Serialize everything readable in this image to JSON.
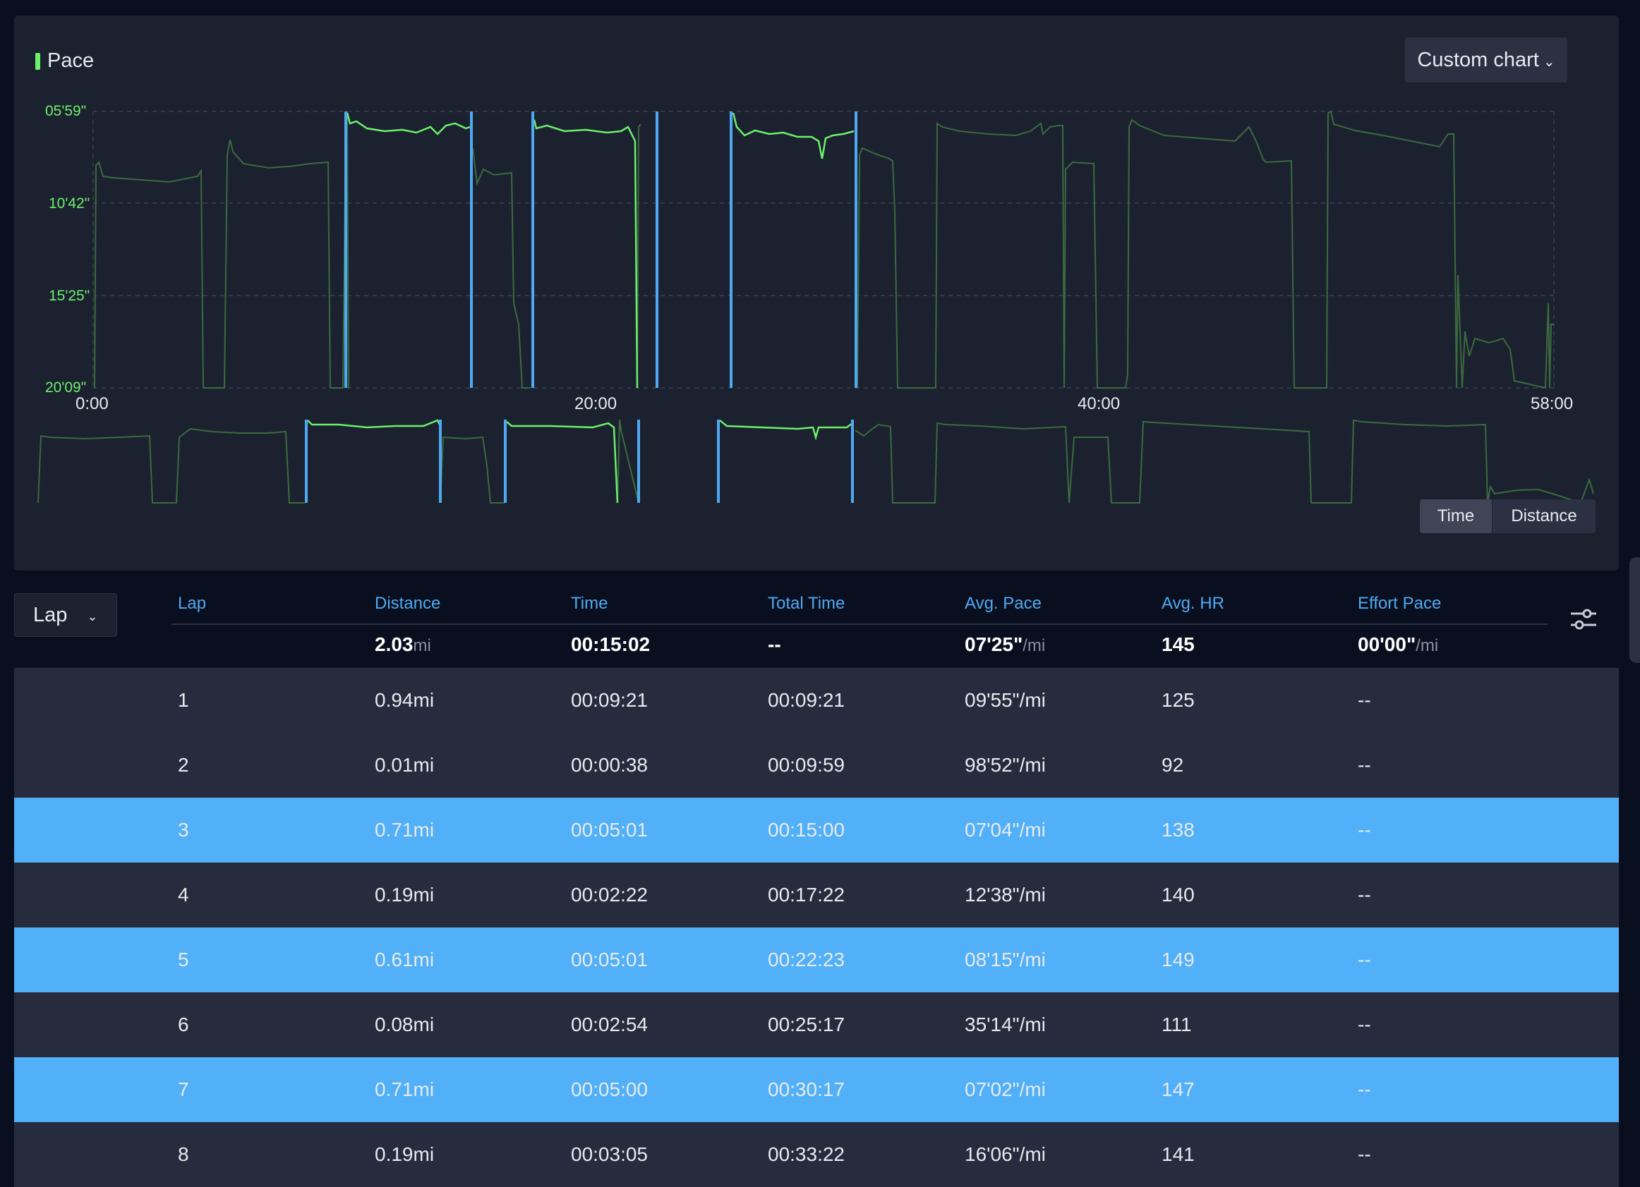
{
  "chart": {
    "title": "Pace",
    "custom_button": "Custom chart",
    "y_ticks": [
      "05'59\"",
      "10'42\"",
      "15'25\"",
      "20'09\""
    ],
    "x_ticks": [
      "0:00",
      "20:00",
      "40:00",
      "58:00"
    ],
    "toggle": {
      "time": "Time",
      "distance": "Distance",
      "active": "time"
    },
    "colors": {
      "line": "#6cf06a",
      "line_dim": "#3a6b3e",
      "lap_marker": "#4fa9f2",
      "grid": "#3a4050"
    }
  },
  "chart_data": {
    "type": "line",
    "x_axis": "time (minutes)",
    "y_axis": "pace (min/mi, inverted)",
    "xlim": [
      0,
      58
    ],
    "ylim": [
      "20'09\"",
      "05'59\""
    ],
    "selected_laps": [
      3,
      5,
      7
    ]
  },
  "table": {
    "lap_select": "Lap",
    "headers": [
      "Lap",
      "Distance",
      "Time",
      "Total Time",
      "Avg. Pace",
      "Avg. HR",
      "Effort Pace"
    ],
    "summary": {
      "distance": "2.03",
      "distance_unit": "mi",
      "time": "00:15:02",
      "total_time": "--",
      "pace": "07'25\"",
      "pace_unit": "/mi",
      "hr": "145",
      "effort": "00'00\"",
      "effort_unit": "/mi"
    },
    "rows": [
      {
        "lap": "1",
        "distance": "0.94mi",
        "time": "00:09:21",
        "total": "00:09:21",
        "pace": "09'55\"/mi",
        "hr": "125",
        "effort": "--",
        "highlight": false
      },
      {
        "lap": "2",
        "distance": "0.01mi",
        "time": "00:00:38",
        "total": "00:09:59",
        "pace": "98'52\"/mi",
        "hr": "92",
        "effort": "--",
        "highlight": false
      },
      {
        "lap": "3",
        "distance": "0.71mi",
        "time": "00:05:01",
        "total": "00:15:00",
        "pace": "07'04\"/mi",
        "hr": "138",
        "effort": "--",
        "highlight": true
      },
      {
        "lap": "4",
        "distance": "0.19mi",
        "time": "00:02:22",
        "total": "00:17:22",
        "pace": "12'38\"/mi",
        "hr": "140",
        "effort": "--",
        "highlight": false
      },
      {
        "lap": "5",
        "distance": "0.61mi",
        "time": "00:05:01",
        "total": "00:22:23",
        "pace": "08'15\"/mi",
        "hr": "149",
        "effort": "--",
        "highlight": true
      },
      {
        "lap": "6",
        "distance": "0.08mi",
        "time": "00:02:54",
        "total": "00:25:17",
        "pace": "35'14\"/mi",
        "hr": "111",
        "effort": "--",
        "highlight": false
      },
      {
        "lap": "7",
        "distance": "0.71mi",
        "time": "00:05:00",
        "total": "00:30:17",
        "pace": "07'02\"/mi",
        "hr": "147",
        "effort": "--",
        "highlight": true
      },
      {
        "lap": "8",
        "distance": "0.19mi",
        "time": "00:03:05",
        "total": "00:33:22",
        "pace": "16'06\"/mi",
        "hr": "141",
        "effort": "--",
        "highlight": false
      }
    ]
  }
}
